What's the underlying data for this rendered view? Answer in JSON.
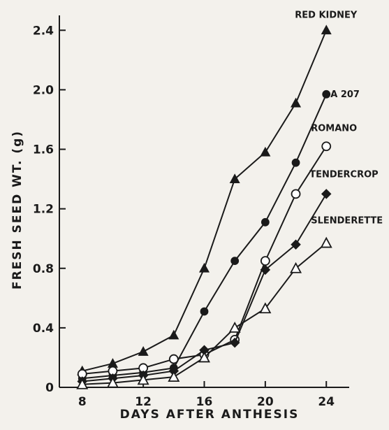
{
  "chart_data": {
    "type": "line",
    "xlabel": "DAYS AFTER ANTHESIS",
    "ylabel": "FRESH SEED WT. (g)",
    "xlim": [
      6.5,
      25.5
    ],
    "ylim": [
      0,
      2.5
    ],
    "xticks": [
      8,
      12,
      16,
      20,
      24
    ],
    "xtick_labels": [
      "8",
      "12",
      "16",
      "20",
      "24"
    ],
    "yticks": [
      0,
      0.4,
      0.8,
      1.2,
      1.6,
      2.0,
      2.4
    ],
    "ytick_labels": [
      "0",
      "0.4",
      "0.8",
      "1.2",
      "1.6",
      "2.0",
      "2.4"
    ],
    "grid": false,
    "series": [
      {
        "name": "RED KIDNEY",
        "marker": "filled-triangle",
        "x": [
          8,
          10,
          12,
          14,
          16,
          18,
          20,
          22,
          24
        ],
        "y": [
          0.11,
          0.16,
          0.24,
          0.35,
          0.8,
          1.4,
          1.58,
          1.91,
          2.4
        ]
      },
      {
        "name": "A 207",
        "marker": "filled-circle",
        "x": [
          8,
          10,
          12,
          14,
          16,
          18,
          20,
          22,
          24
        ],
        "y": [
          0.06,
          0.08,
          0.1,
          0.13,
          0.51,
          0.85,
          1.11,
          1.51,
          1.97
        ]
      },
      {
        "name": "ROMANO",
        "marker": "open-circle",
        "x": [
          8,
          10,
          12,
          14,
          16,
          18,
          20,
          22,
          24
        ],
        "y": [
          0.09,
          0.11,
          0.13,
          0.19,
          0.22,
          0.32,
          0.85,
          1.3,
          1.62
        ]
      },
      {
        "name": "TENDERCROP",
        "marker": "filled-diamond",
        "x": [
          8,
          10,
          12,
          14,
          16,
          18,
          20,
          22,
          24
        ],
        "y": [
          0.04,
          0.06,
          0.08,
          0.11,
          0.25,
          0.3,
          0.79,
          0.96,
          1.3
        ]
      },
      {
        "name": "SLENDERETTE",
        "marker": "open-triangle",
        "x": [
          8,
          10,
          12,
          14,
          16,
          18,
          20,
          22,
          24
        ],
        "y": [
          0.02,
          0.03,
          0.05,
          0.07,
          0.2,
          0.4,
          0.53,
          0.8,
          0.97
        ]
      }
    ]
  }
}
